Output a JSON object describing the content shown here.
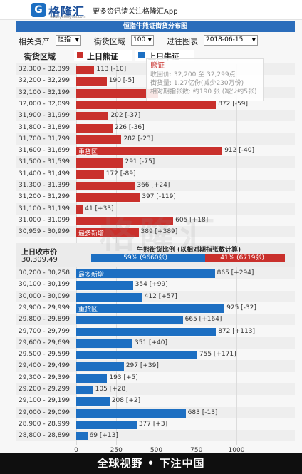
{
  "app": {
    "logo_glyph": "G",
    "name": "格隆汇",
    "slogan": "更多资讯请关注格隆汇App",
    "url": "www.gelonghui.com"
  },
  "title": "恒指牛熊证街货分布图",
  "filters": {
    "asset_label": "相关资产",
    "asset_value": "恒指",
    "range_label": "街货区域",
    "range_value": "100",
    "history_label": "过往图表",
    "history_value": "2018-06-15"
  },
  "legend": {
    "range_header": "街货区域",
    "bear_label": "上日熊证",
    "bull_label": "上日牛证",
    "bear_color": "#c9302c",
    "bull_color": "#1d6fc2"
  },
  "tooltip": {
    "title": "熊证",
    "line1": "收回价: 32,200 至 32,299点",
    "line2": "街货量: 1.27亿份(减少230万份)",
    "line3": "相对期指张数: 约190 张 (减少约5张)"
  },
  "summary": {
    "close_label": "上日收市价",
    "close_value": "30,309.49",
    "ratio_title": "牛熊街货比例 (以相对期指张数计算)",
    "bull_text": "59% (9660张)",
    "bear_text": "41% (6719张)",
    "bull_fraction": 0.59
  },
  "chart_data": {
    "type": "bar",
    "orientation": "horizontal",
    "xlim": [
      0,
      1000
    ],
    "xticks": [
      "0",
      "250",
      "500",
      "750",
      "1000"
    ],
    "bear": [
      {
        "range": "32,300 - 32,399",
        "value": 113,
        "label": "113 [-10]",
        "tag": ""
      },
      {
        "range": "32,200 - 32,299",
        "value": 190,
        "label": "190 [-5]",
        "tag": ""
      },
      {
        "range": "32,100 - 32,199",
        "value": 510,
        "label": "",
        "tag": ""
      },
      {
        "range": "32,000 - 32,099",
        "value": 872,
        "label": "872 [-59]",
        "tag": ""
      },
      {
        "range": "31,900 - 31,999",
        "value": 202,
        "label": "202 [-37]",
        "tag": ""
      },
      {
        "range": "31,800 - 31,899",
        "value": 226,
        "label": "226 [-36]",
        "tag": ""
      },
      {
        "range": "31,700 - 31,799",
        "value": 282,
        "label": "282 [-23]",
        "tag": ""
      },
      {
        "range": "31,600 - 31,699",
        "value": 912,
        "label": "912 [-40]",
        "tag": "重货区"
      },
      {
        "range": "31,500 - 31,599",
        "value": 291,
        "label": "291 [-75]",
        "tag": ""
      },
      {
        "range": "31,400 - 31,499",
        "value": 172,
        "label": "172 [-89]",
        "tag": ""
      },
      {
        "range": "31,300 - 31,399",
        "value": 366,
        "label": "366 [+24]",
        "tag": ""
      },
      {
        "range": "31,200 - 31,299",
        "value": 397,
        "label": "397 [-119]",
        "tag": ""
      },
      {
        "range": "31,100 - 31,199",
        "value": 41,
        "label": "41 [+33]",
        "tag": ""
      },
      {
        "range": "31,000 - 31,099",
        "value": 605,
        "label": "605 [+18]",
        "tag": ""
      },
      {
        "range": "30,959 - 30,999",
        "value": 389,
        "label": "389 [+389]",
        "tag": "最多新增"
      }
    ],
    "bull": [
      {
        "range": "30,200 - 30,258",
        "value": 865,
        "label": "865 [+294]",
        "tag": "最多新增"
      },
      {
        "range": "30,100 - 30,199",
        "value": 354,
        "label": "354 [+99]",
        "tag": ""
      },
      {
        "range": "30,000 - 30,099",
        "value": 412,
        "label": "412 [+57]",
        "tag": ""
      },
      {
        "range": "29,900 - 29,999",
        "value": 925,
        "label": "925 [-32]",
        "tag": "重货区"
      },
      {
        "range": "29,800 - 29,899",
        "value": 665,
        "label": "665 [+164]",
        "tag": ""
      },
      {
        "range": "29,700 - 29,799",
        "value": 872,
        "label": "872 [+113]",
        "tag": ""
      },
      {
        "range": "29,600 - 29,699",
        "value": 351,
        "label": "351 [+40]",
        "tag": ""
      },
      {
        "range": "29,500 - 29,599",
        "value": 755,
        "label": "755 [+171]",
        "tag": ""
      },
      {
        "range": "29,400 - 29,499",
        "value": 297,
        "label": "297 [+39]",
        "tag": ""
      },
      {
        "range": "29,300 - 29,399",
        "value": 193,
        "label": "193 [+5]",
        "tag": ""
      },
      {
        "range": "29,200 - 29,299",
        "value": 105,
        "label": "105 [+28]",
        "tag": ""
      },
      {
        "range": "29,100 - 29,199",
        "value": 208,
        "label": "208 [+2]",
        "tag": ""
      },
      {
        "range": "29,000 - 29,099",
        "value": 683,
        "label": "683 [-13]",
        "tag": ""
      },
      {
        "range": "28,900 - 28,999",
        "value": 377,
        "label": "377 [+3]",
        "tag": ""
      },
      {
        "range": "28,800 - 28,899",
        "value": 69,
        "label": "69 [+13]",
        "tag": ""
      }
    ]
  },
  "footer": "全球视野 • 下注中国",
  "watermark": "格隆汇"
}
